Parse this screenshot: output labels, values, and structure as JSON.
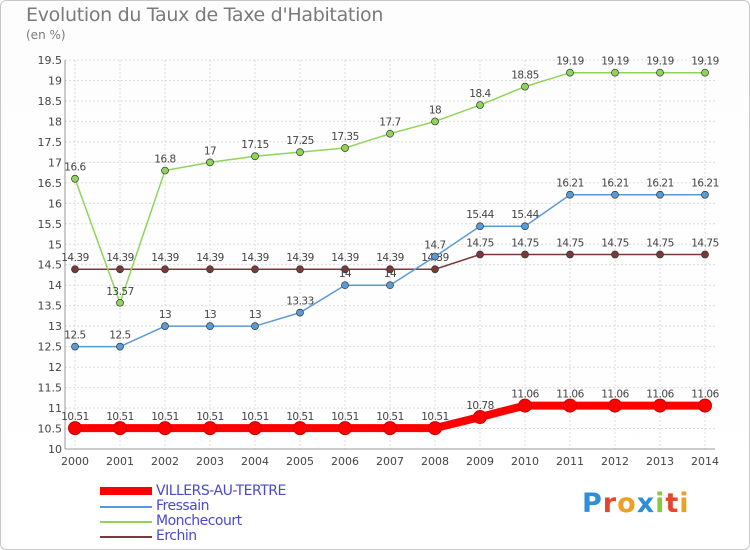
{
  "title": "Evolution du Taux de Taxe d'Habitation",
  "unit_label": "(en %)",
  "logo": {
    "text": "Proxiti",
    "colors": [
      "#2e8fd8",
      "#e8452c",
      "#f0a020",
      "#2e8fd8",
      "#8dc63f",
      "#e8452c",
      "#f0a020"
    ]
  },
  "chart_data": {
    "type": "line",
    "x": [
      2000,
      2001,
      2002,
      2003,
      2004,
      2005,
      2006,
      2007,
      2008,
      2009,
      2010,
      2011,
      2012,
      2013,
      2014
    ],
    "ylim": [
      10,
      19.5
    ],
    "yticks": [
      "10",
      "10.5",
      "11",
      "11.5",
      "12",
      "12.5",
      "13",
      "13.5",
      "14",
      "14.5",
      "15",
      "15.5",
      "16",
      "16.5",
      "17",
      "17.5",
      "18",
      "18.5",
      "19",
      "19.5"
    ],
    "grid": true,
    "legend_position": "bottom-left",
    "series": [
      {
        "name": "VILLERS-AU-TERTRE",
        "color": "#ff0000",
        "emphasis": true,
        "values": [
          10.51,
          10.51,
          10.51,
          10.51,
          10.51,
          10.51,
          10.51,
          10.51,
          10.51,
          10.78,
          11.06,
          11.06,
          11.06,
          11.06,
          11.06
        ],
        "labels": [
          "10.51",
          "10.51",
          "10.51",
          "10.51",
          "10.51",
          "10.51",
          "10.51",
          "10.51",
          "10.51",
          "10.78",
          "11.06",
          "11.06",
          "11.06",
          "11.06",
          "11.06"
        ]
      },
      {
        "name": "Fressain",
        "color": "#5b9bd5",
        "values": [
          12.5,
          12.5,
          13,
          13,
          13,
          13.33,
          14,
          14,
          14.7,
          15.44,
          15.44,
          16.21,
          16.21,
          16.21,
          16.21
        ],
        "labels": [
          "12.5",
          "12.5",
          "13",
          "13",
          "13",
          "13.33",
          "14",
          "14",
          "14.7",
          "15.44",
          "15.44",
          "16.21",
          "16.21",
          "16.21",
          "16.21"
        ]
      },
      {
        "name": "Monchecourt",
        "color": "#8fd45a",
        "values": [
          16.6,
          13.57,
          16.8,
          17,
          17.15,
          17.25,
          17.35,
          17.7,
          18,
          18.4,
          18.85,
          19.19,
          19.19,
          19.19,
          19.19
        ],
        "labels": [
          "16.6",
          "13.57",
          "16.8",
          "17",
          "17.15",
          "17.25",
          "17.35",
          "17.7",
          "18",
          "18.4",
          "18.85",
          "19.19",
          "19.19",
          "19.19",
          "19.19"
        ]
      },
      {
        "name": "Erchin",
        "color": "#7a3a3a",
        "values": [
          14.39,
          14.39,
          14.39,
          14.39,
          14.39,
          14.39,
          14.39,
          14.39,
          14.39,
          14.75,
          14.75,
          14.75,
          14.75,
          14.75,
          14.75
        ],
        "labels": [
          "14.39",
          "14.39",
          "14.39",
          "14.39",
          "14.39",
          "14.39",
          "14.39",
          "14.39",
          "14.39",
          "14.75",
          "14.75",
          "14.75",
          "14.75",
          "14.75",
          "14.75"
        ]
      }
    ]
  }
}
